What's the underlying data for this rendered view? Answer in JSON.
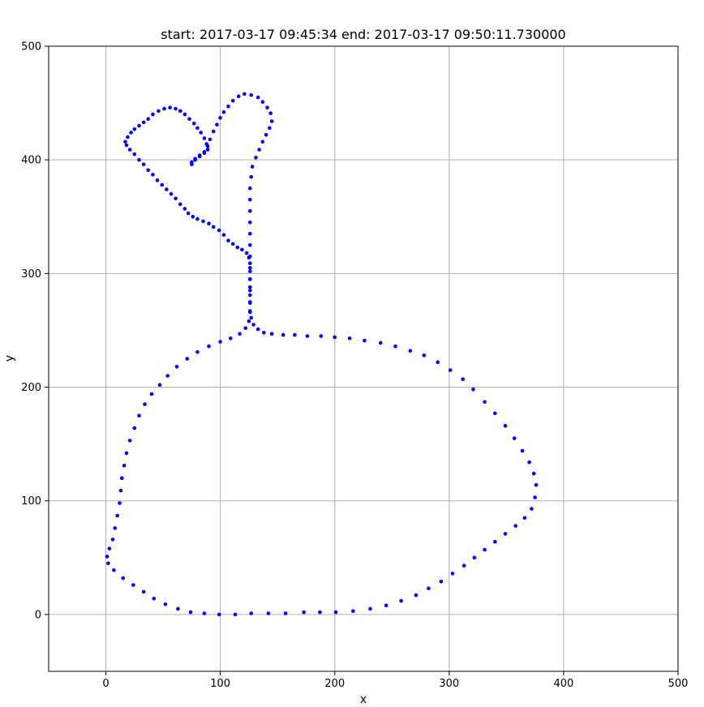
{
  "chart_data": {
    "type": "scatter",
    "title": "start: 2017-03-17 09:45:34 end: 2017-03-17 09:50:11.730000",
    "xlabel": "x",
    "ylabel": "y",
    "xlim": [
      -50,
      500
    ],
    "ylim": [
      -50,
      500
    ],
    "xticks": [
      0,
      100,
      200,
      300,
      400,
      500
    ],
    "yticks": [
      0,
      100,
      200,
      300,
      400,
      500
    ],
    "grid": true,
    "marker_color": "#0000ff",
    "series": [
      {
        "points": [
          [
            75,
            396
          ],
          [
            78,
            400
          ],
          [
            82,
            403
          ],
          [
            86,
            406
          ],
          [
            89,
            409
          ],
          [
            88,
            414
          ],
          [
            86,
            419
          ],
          [
            83,
            424
          ],
          [
            80,
            428
          ],
          [
            77,
            432
          ],
          [
            73,
            436
          ],
          [
            69,
            440
          ],
          [
            65,
            443
          ],
          [
            61,
            445
          ],
          [
            56,
            446
          ],
          [
            51,
            445
          ],
          [
            46,
            443
          ],
          [
            41,
            440
          ],
          [
            37,
            436
          ],
          [
            33,
            433
          ],
          [
            29,
            430
          ],
          [
            25,
            427
          ],
          [
            22,
            424
          ],
          [
            19,
            420
          ],
          [
            17,
            416
          ],
          [
            18,
            413
          ],
          [
            21,
            409
          ],
          [
            25,
            405
          ],
          [
            29,
            400
          ],
          [
            33,
            396
          ],
          [
            37,
            391
          ],
          [
            41,
            387
          ],
          [
            45,
            382
          ],
          [
            49,
            378
          ],
          [
            53,
            374
          ],
          [
            57,
            370
          ],
          [
            61,
            366
          ],
          [
            65,
            361
          ],
          [
            69,
            357
          ],
          [
            72,
            353
          ],
          [
            76,
            350
          ],
          [
            80,
            348
          ],
          [
            85,
            346
          ],
          [
            90,
            344
          ],
          [
            94,
            341
          ],
          [
            99,
            338
          ],
          [
            103,
            334
          ],
          [
            107,
            329
          ],
          [
            111,
            326
          ],
          [
            115,
            323
          ],
          [
            119,
            321
          ],
          [
            123,
            318
          ],
          [
            125,
            314
          ],
          [
            126,
            309
          ],
          [
            126,
            302
          ],
          [
            126,
            295
          ],
          [
            126,
            288
          ],
          [
            126,
            281
          ],
          [
            126,
            274
          ],
          [
            126,
            267
          ],
          [
            127,
            261
          ],
          [
            129,
            255
          ],
          [
            133,
            251
          ],
          [
            138,
            248
          ],
          [
            145,
            247
          ],
          [
            155,
            246
          ],
          [
            165,
            246
          ],
          [
            176,
            245
          ],
          [
            188,
            245
          ],
          [
            200,
            244
          ],
          [
            213,
            243
          ],
          [
            226,
            241
          ],
          [
            240,
            239
          ],
          [
            253,
            236
          ],
          [
            266,
            232
          ],
          [
            278,
            228
          ],
          [
            290,
            222
          ],
          [
            301,
            215
          ],
          [
            312,
            207
          ],
          [
            321,
            198
          ],
          [
            331,
            187
          ],
          [
            340,
            177
          ],
          [
            349,
            166
          ],
          [
            357,
            155
          ],
          [
            364,
            144
          ],
          [
            370,
            134
          ],
          [
            374,
            124
          ],
          [
            376,
            114
          ],
          [
            375,
            103
          ],
          [
            372,
            93
          ],
          [
            366,
            85
          ],
          [
            358,
            78
          ],
          [
            349,
            71
          ],
          [
            340,
            64
          ],
          [
            331,
            57
          ],
          [
            322,
            50
          ],
          [
            313,
            43
          ],
          [
            303,
            36
          ],
          [
            293,
            29
          ],
          [
            282,
            23
          ],
          [
            271,
            17
          ],
          [
            258,
            12
          ],
          [
            245,
            8
          ],
          [
            231,
            5
          ],
          [
            216,
            3
          ],
          [
            201,
            2
          ],
          [
            187,
            2
          ],
          [
            173,
            2
          ],
          [
            157,
            1
          ],
          [
            142,
            1
          ],
          [
            127,
            1
          ],
          [
            113,
            0
          ],
          [
            99,
            0
          ],
          [
            86,
            1
          ],
          [
            74,
            2
          ],
          [
            63,
            5
          ],
          [
            52,
            9
          ],
          [
            42,
            14
          ],
          [
            33,
            20
          ],
          [
            24,
            26
          ],
          [
            15,
            32
          ],
          [
            7,
            39
          ],
          [
            2,
            45
          ],
          [
            1,
            51
          ],
          [
            3,
            58
          ],
          [
            6,
            66
          ],
          [
            8,
            76
          ],
          [
            10,
            87
          ],
          [
            12,
            98
          ],
          [
            13,
            109
          ],
          [
            14,
            120
          ],
          [
            16,
            131
          ],
          [
            18,
            142
          ],
          [
            21,
            153
          ],
          [
            25,
            164
          ],
          [
            29,
            175
          ],
          [
            34,
            185
          ],
          [
            40,
            194
          ],
          [
            47,
            202
          ],
          [
            54,
            210
          ],
          [
            62,
            218
          ],
          [
            71,
            225
          ],
          [
            80,
            231
          ],
          [
            90,
            236
          ],
          [
            100,
            240
          ],
          [
            109,
            243
          ],
          [
            117,
            247
          ],
          [
            122,
            252
          ],
          [
            125,
            258
          ],
          [
            126,
            266
          ],
          [
            126,
            275
          ],
          [
            126,
            285
          ],
          [
            126,
            295
          ],
          [
            126,
            305
          ],
          [
            126,
            315
          ],
          [
            126,
            325
          ],
          [
            126,
            335
          ],
          [
            126,
            345
          ],
          [
            126,
            355
          ],
          [
            126,
            365
          ],
          [
            126,
            375
          ],
          [
            127,
            385
          ],
          [
            128,
            394
          ],
          [
            131,
            402
          ],
          [
            134,
            409
          ],
          [
            137,
            416
          ],
          [
            140,
            422
          ],
          [
            143,
            428
          ],
          [
            145,
            434
          ],
          [
            144,
            441
          ],
          [
            141,
            446
          ],
          [
            137,
            451
          ],
          [
            133,
            455
          ],
          [
            127,
            457
          ],
          [
            121,
            458
          ],
          [
            116,
            456
          ],
          [
            111,
            452
          ],
          [
            107,
            447
          ],
          [
            103,
            442
          ],
          [
            100,
            437
          ],
          [
            97,
            431
          ],
          [
            94,
            425
          ],
          [
            91,
            418
          ],
          [
            89,
            412
          ],
          [
            86,
            407
          ],
          [
            82,
            404
          ],
          [
            78,
            401
          ],
          [
            75,
            398
          ]
        ]
      }
    ]
  }
}
